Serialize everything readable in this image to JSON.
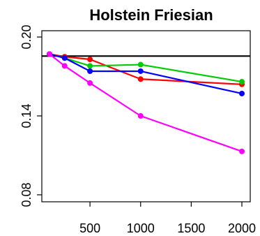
{
  "chart_data": {
    "type": "line",
    "title": "Holstein Friesian",
    "xlabel": "",
    "ylabel": "",
    "xlim": [
      100,
      2000
    ],
    "ylim": [
      0.08,
      0.2
    ],
    "x_ticks": [
      500,
      1000,
      1500,
      2000
    ],
    "x_tick_labels": [
      "500",
      "1000",
      "1500",
      "2000"
    ],
    "y_ticks": [
      0.08,
      0.14,
      0.2
    ],
    "y_tick_labels": [
      "0.08",
      "0.14",
      "0.20"
    ],
    "grid": false,
    "legend": "none",
    "reference_line": {
      "y": 0.1855,
      "color": "#000000"
    },
    "series": [
      {
        "color": "#ff0000",
        "x": [
          100,
          250,
          500,
          1000,
          2000
        ],
        "y": [
          0.187,
          0.185,
          0.183,
          0.168,
          0.164
        ]
      },
      {
        "color": "#00cc00",
        "x": [
          100,
          250,
          500,
          1000,
          2000
        ],
        "y": [
          0.187,
          0.184,
          0.178,
          0.179,
          0.166
        ]
      },
      {
        "color": "#0000ff",
        "x": [
          100,
          250,
          500,
          1000,
          2000
        ],
        "y": [
          0.187,
          0.184,
          0.174,
          0.174,
          0.157
        ]
      },
      {
        "color": "#ff00ff",
        "x": [
          100,
          250,
          500,
          1000,
          2000
        ],
        "y": [
          0.187,
          0.178,
          0.165,
          0.14,
          0.113
        ]
      }
    ]
  }
}
